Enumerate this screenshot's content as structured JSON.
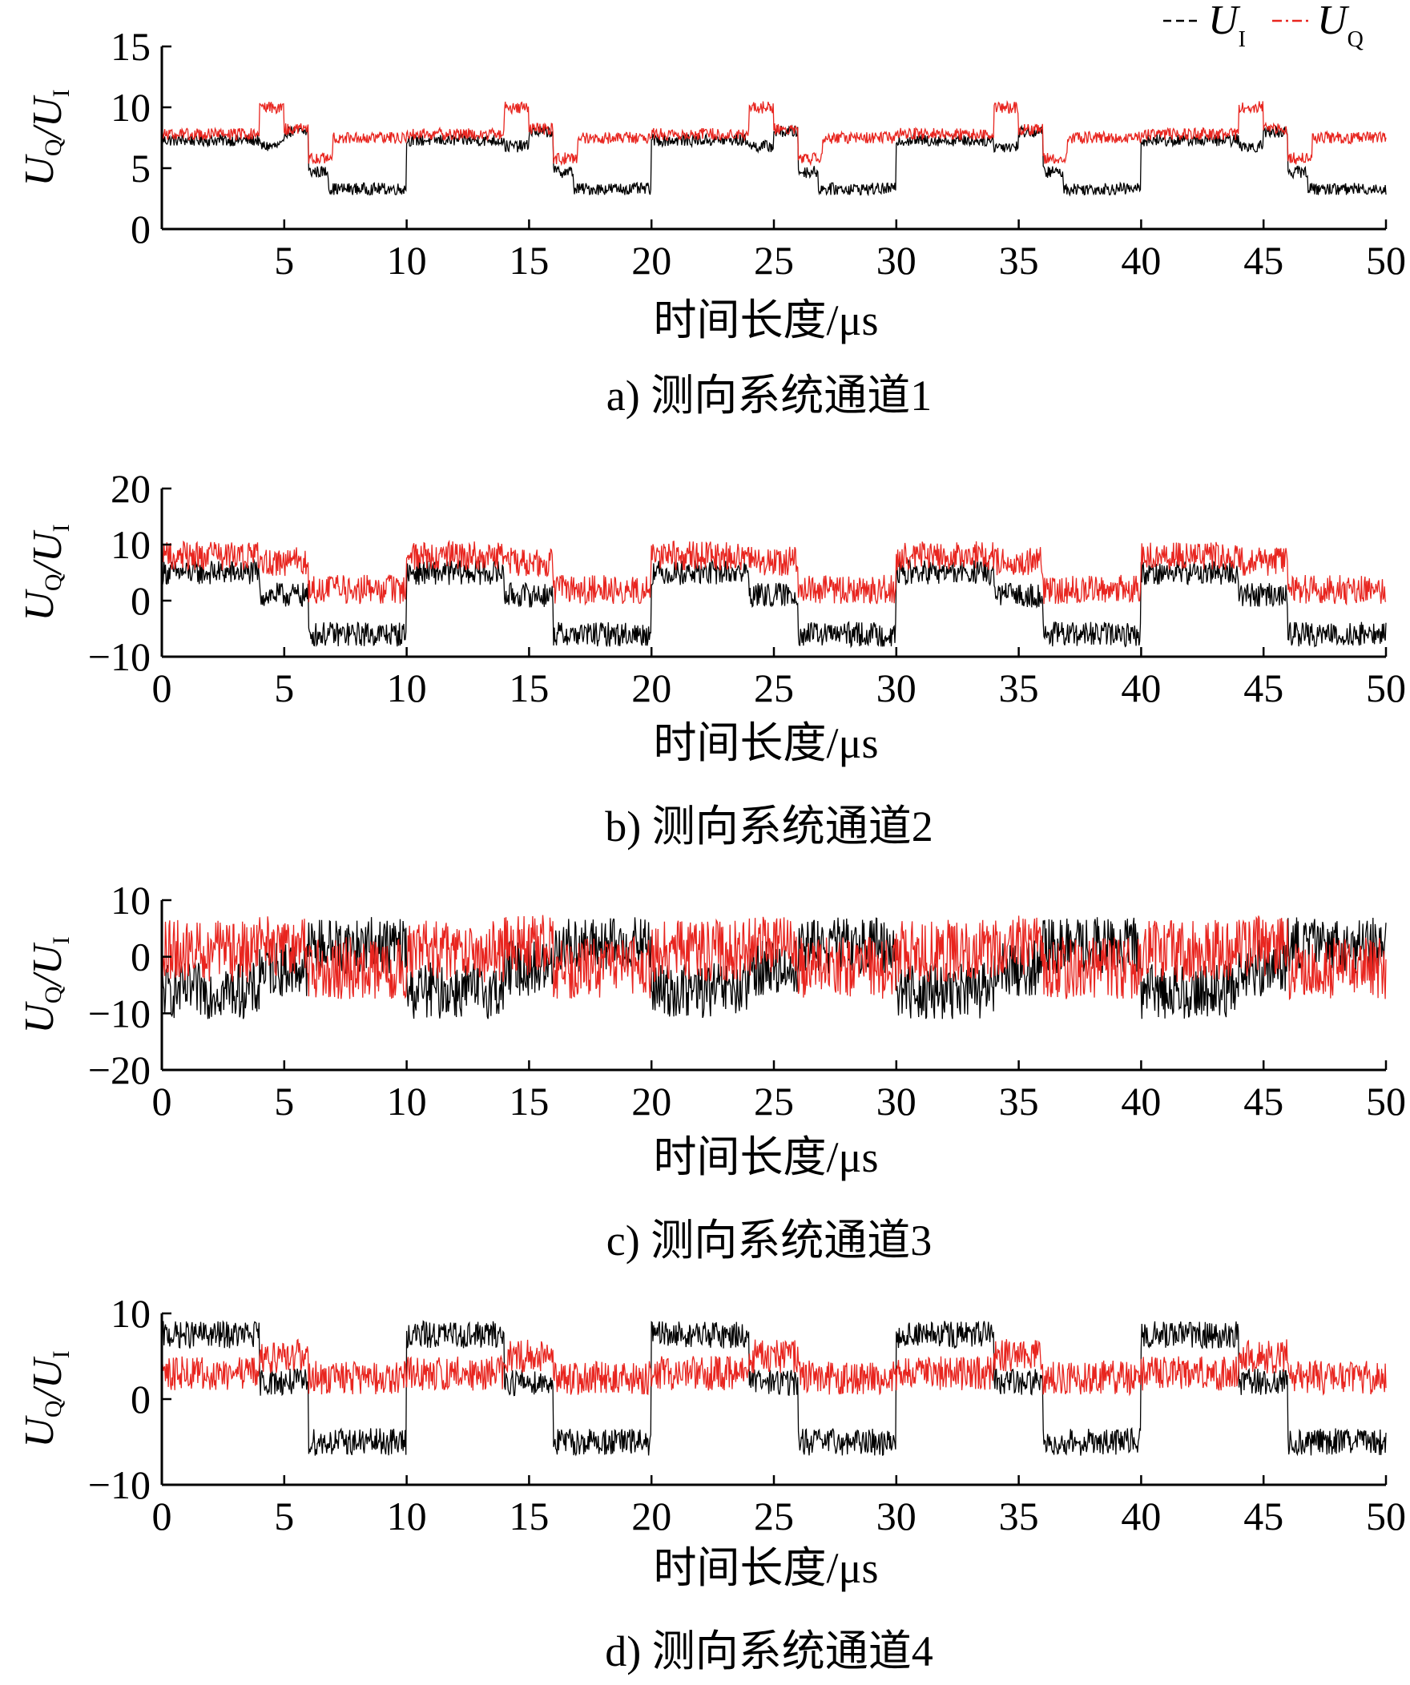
{
  "figure": {
    "legend": {
      "placement": "top-right",
      "items": [
        {
          "main": "U",
          "sub": "I",
          "color": "#000000",
          "dash": "dashed"
        },
        {
          "main": "U",
          "sub": "Q",
          "color": "#e8251f",
          "dash": "dash-dot"
        }
      ]
    },
    "colors": {
      "ui": "#000000",
      "uq": "#e8251f"
    }
  },
  "chart_data": [
    {
      "type": "line",
      "caption": "a) 测向系统通道1",
      "xlabel": "时间长度/μs",
      "ylabel": "UQ/UI",
      "xlim": [
        0,
        50
      ],
      "ylim": [
        0,
        15
      ],
      "xticks": [
        "",
        "5",
        "10",
        "15",
        "20",
        "25",
        "30",
        "35",
        "40",
        "45",
        "50"
      ],
      "yticks": [
        "0",
        "5",
        "10",
        "15"
      ],
      "grid": false,
      "noise": {
        "UI": 0.5,
        "UQ": 0.5
      },
      "series": [
        {
          "name": "UI",
          "color": "#000000",
          "x": [
            0,
            4,
            4,
            5,
            5,
            6,
            6,
            6.8,
            6.8,
            10,
            10,
            14,
            14,
            15,
            15,
            16,
            16,
            16.8,
            16.8,
            20,
            20,
            24,
            24,
            25,
            25,
            26,
            26,
            26.8,
            26.8,
            30,
            30,
            34,
            34,
            35,
            35,
            36,
            36,
            36.8,
            36.8,
            40,
            40,
            44,
            44,
            45,
            45,
            46,
            46,
            46.8,
            46.8,
            50
          ],
          "y": [
            7.3,
            7.3,
            6.8,
            6.8,
            8.0,
            8.0,
            4.7,
            4.7,
            3.3,
            3.3,
            7.3,
            7.3,
            6.8,
            6.8,
            8.0,
            8.0,
            4.7,
            4.7,
            3.3,
            3.3,
            7.3,
            7.3,
            6.8,
            6.8,
            8.0,
            8.0,
            4.7,
            4.7,
            3.3,
            3.3,
            7.3,
            7.3,
            6.8,
            6.8,
            8.0,
            8.0,
            4.7,
            4.7,
            3.3,
            3.3,
            7.3,
            7.3,
            6.8,
            6.8,
            8.0,
            8.0,
            4.7,
            4.7,
            3.3,
            3.3
          ]
        },
        {
          "name": "UQ",
          "color": "#e8251f",
          "x": [
            0,
            4,
            4,
            5,
            5,
            6,
            6,
            7,
            7,
            10,
            10,
            14,
            14,
            15,
            15,
            16,
            16,
            17,
            17,
            20,
            20,
            24,
            24,
            25,
            25,
            26,
            26,
            27,
            27,
            30,
            30,
            34,
            34,
            35,
            35,
            36,
            36,
            37,
            37,
            40,
            40,
            44,
            44,
            45,
            45,
            46,
            46,
            47,
            47,
            50
          ],
          "y": [
            7.8,
            7.8,
            10.0,
            10.0,
            8.2,
            8.2,
            5.8,
            5.8,
            7.5,
            7.5,
            7.8,
            7.8,
            10.0,
            10.0,
            8.2,
            8.2,
            5.8,
            5.8,
            7.5,
            7.5,
            7.8,
            7.8,
            10.0,
            10.0,
            8.2,
            8.2,
            5.8,
            5.8,
            7.5,
            7.5,
            7.8,
            7.8,
            10.0,
            10.0,
            8.2,
            8.2,
            5.8,
            5.8,
            7.5,
            7.5,
            7.8,
            7.8,
            10.0,
            10.0,
            8.2,
            8.2,
            5.8,
            5.8,
            7.5,
            7.5
          ]
        }
      ]
    },
    {
      "type": "line",
      "caption": "b) 测向系统通道2",
      "xlabel": "时间长度/μs",
      "ylabel": "UQ/UI",
      "xlim": [
        0,
        50
      ],
      "ylim": [
        -10,
        20
      ],
      "xticks": [
        "0",
        "5",
        "10",
        "15",
        "20",
        "25",
        "30",
        "35",
        "40",
        "45",
        "50"
      ],
      "yticks": [
        "−10",
        "0",
        "10",
        "20"
      ],
      "grid": false,
      "noise": {
        "UI": 2.2,
        "UQ": 2.6
      },
      "series": [
        {
          "name": "UI",
          "color": "#000000",
          "x": [
            0,
            4,
            4,
            6,
            6,
            10,
            10,
            14,
            14,
            16,
            16,
            20,
            20,
            24,
            24,
            26,
            26,
            30,
            30,
            34,
            34,
            36,
            36,
            40,
            40,
            44,
            44,
            46,
            46,
            50
          ],
          "y": [
            5,
            5,
            1,
            1,
            -6,
            -6,
            5,
            5,
            1,
            1,
            -6,
            -6,
            5,
            5,
            1,
            1,
            -6,
            -6,
            5,
            5,
            1,
            1,
            -6,
            -6,
            5,
            5,
            1,
            1,
            -6,
            -6
          ]
        },
        {
          "name": "UQ",
          "color": "#e8251f",
          "x": [
            0,
            4,
            4,
            6,
            6,
            10,
            10,
            14,
            14,
            16,
            16,
            20,
            20,
            24,
            24,
            26,
            26,
            30,
            30,
            34,
            34,
            36,
            36,
            40,
            40,
            44,
            44,
            46,
            46,
            50
          ],
          "y": [
            8,
            8,
            7,
            7,
            2,
            2,
            8,
            8,
            7,
            7,
            2,
            2,
            8,
            8,
            7,
            7,
            2,
            2,
            8,
            8,
            7,
            7,
            2,
            2,
            8,
            8,
            7,
            7,
            2,
            2
          ]
        }
      ]
    },
    {
      "type": "line",
      "caption": "c) 测向系统通道3",
      "xlabel": "时间长度/μs",
      "ylabel": "UQ/UI",
      "xlim": [
        0,
        50
      ],
      "ylim": [
        -20,
        10
      ],
      "xticks": [
        "0",
        "5",
        "10",
        "15",
        "20",
        "25",
        "30",
        "35",
        "40",
        "45",
        "50"
      ],
      "yticks": [
        "−20",
        "−10",
        "0",
        "10"
      ],
      "grid": false,
      "noise": {
        "UI": 5.0,
        "UQ": 5.5
      },
      "series": [
        {
          "name": "UI",
          "color": "#000000",
          "x": [
            0,
            4,
            4,
            6,
            6,
            10,
            10,
            14,
            14,
            16,
            16,
            20,
            20,
            24,
            24,
            26,
            26,
            30,
            30,
            34,
            34,
            36,
            36,
            40,
            40,
            44,
            44,
            46,
            46,
            50
          ],
          "y": [
            -6,
            -6,
            -2,
            -2,
            2,
            2,
            -6,
            -6,
            -2,
            -2,
            2,
            2,
            -6,
            -6,
            -2,
            -2,
            2,
            2,
            -6,
            -6,
            -2,
            -2,
            2,
            2,
            -6,
            -6,
            -2,
            -2,
            2,
            2
          ]
        },
        {
          "name": "UQ",
          "color": "#e8251f",
          "x": [
            0,
            4,
            4,
            6,
            6,
            10,
            10,
            14,
            14,
            16,
            16,
            20,
            20,
            24,
            24,
            26,
            26,
            30,
            30,
            34,
            34,
            36,
            36,
            40,
            40,
            44,
            44,
            46,
            46,
            50
          ],
          "y": [
            1,
            1,
            2,
            2,
            -2,
            -2,
            1,
            1,
            2,
            2,
            -2,
            -2,
            1,
            1,
            2,
            2,
            -2,
            -2,
            1,
            1,
            2,
            2,
            -2,
            -2,
            1,
            1,
            2,
            2,
            -2,
            -2
          ]
        }
      ]
    },
    {
      "type": "line",
      "caption": "d) 测向系统通道4",
      "xlabel": "时间长度/μs",
      "ylabel": "UQ/UI",
      "xlim": [
        0,
        50
      ],
      "ylim": [
        -10,
        10
      ],
      "xticks": [
        "0",
        "5",
        "10",
        "15",
        "20",
        "25",
        "30",
        "35",
        "40",
        "45",
        "50"
      ],
      "yticks": [
        "−10",
        "0",
        "10"
      ],
      "grid": false,
      "noise": {
        "UI": 1.6,
        "UQ": 2.0
      },
      "series": [
        {
          "name": "UI",
          "color": "#000000",
          "x": [
            0,
            4,
            4,
            6,
            6,
            10,
            10,
            14,
            14,
            16,
            16,
            20,
            20,
            24,
            24,
            26,
            26,
            30,
            30,
            34,
            34,
            36,
            36,
            40,
            40,
            44,
            44,
            46,
            46,
            50
          ],
          "y": [
            7.5,
            7.5,
            2,
            2,
            -5,
            -5,
            7.5,
            7.5,
            2,
            2,
            -5,
            -5,
            7.5,
            7.5,
            2,
            2,
            -5,
            -5,
            7.5,
            7.5,
            2,
            2,
            -5,
            -5,
            7.5,
            7.5,
            2,
            2,
            -5,
            -5
          ]
        },
        {
          "name": "UQ",
          "color": "#e8251f",
          "x": [
            0,
            4,
            4,
            6,
            6,
            10,
            10,
            14,
            14,
            16,
            16,
            20,
            20,
            24,
            24,
            26,
            26,
            30,
            30,
            34,
            34,
            36,
            36,
            40,
            40,
            44,
            44,
            46,
            46,
            50
          ],
          "y": [
            3,
            3,
            5,
            5,
            2.5,
            2.5,
            3,
            3,
            5,
            5,
            2.5,
            2.5,
            3,
            3,
            5,
            5,
            2.5,
            2.5,
            3,
            3,
            5,
            5,
            2.5,
            2.5,
            3,
            3,
            5,
            5,
            2.5,
            2.5
          ]
        }
      ]
    }
  ]
}
